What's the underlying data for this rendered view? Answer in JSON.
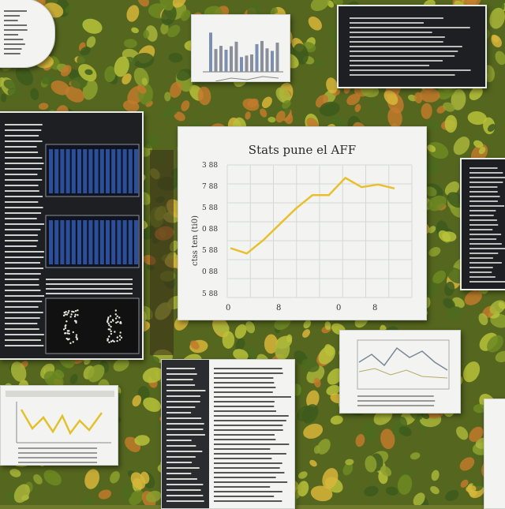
{
  "scene": {
    "description_label": "",
    "main_chart": {
      "title": "Stats pune el AFF",
      "ylabel": "ctss ten (ti0)",
      "yticks": [
        "3 88",
        "7 88",
        "5 88",
        "0 88",
        "5 88",
        "0 88",
        "5 88"
      ],
      "xticks": [
        "0",
        "8",
        "0",
        "8"
      ],
      "line_color": "#e8c02f",
      "series": [
        0.42,
        0.38,
        0.48,
        0.6,
        0.72,
        0.82,
        0.82,
        0.95,
        0.88,
        0.9,
        0.87
      ]
    },
    "colors": {
      "foliage_dark": "#3d5a1c",
      "foliage_light": "#b9c23a",
      "foliage_yellow": "#d8b63a",
      "autumn_orange": "#c27a2c",
      "paper": "#f3f4f1",
      "dark_panel": "#1d1f22",
      "blue_bars": "#2b4f9b"
    }
  }
}
